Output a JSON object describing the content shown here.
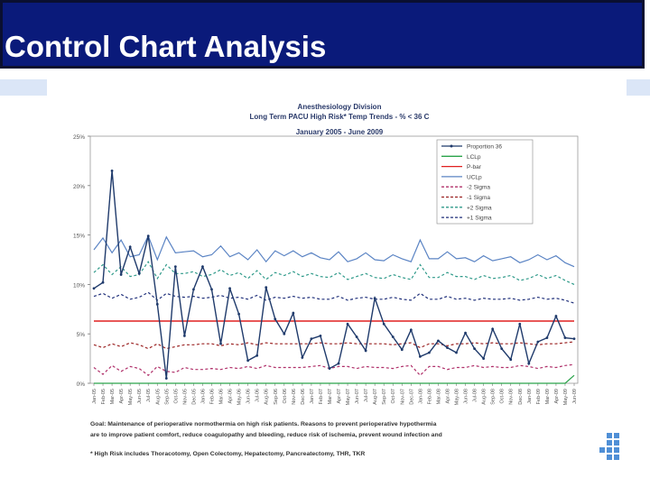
{
  "slide": {
    "title": "Control Chart Analysis"
  },
  "chart_data": {
    "type": "line",
    "title": "Anesthesiology Division",
    "subtitle_line1": "Long Term PACU High Risk* Temp Trends - % < 36 C",
    "subtitle_line2": "January 2005 - June 2009",
    "ylim": [
      0,
      25
    ],
    "yticks": [
      "0%",
      "5%",
      "10%",
      "15%",
      "20%",
      "25%"
    ],
    "categories": [
      "Jan-05",
      "Feb-05",
      "Mar-05",
      "Apr-05",
      "May-05",
      "Jun-05",
      "Jul-05",
      "Aug-05",
      "Sep-05",
      "Oct-05",
      "Nov-05",
      "Dec-05",
      "Jan-06",
      "Feb-06",
      "Mar-06",
      "Apr-06",
      "May-06",
      "Jun-06",
      "Jul-06",
      "Aug-06",
      "Sep-06",
      "Oct-06",
      "Nov-06",
      "Dec-06",
      "Jan-07",
      "Feb-07",
      "Mar-07",
      "Apr-07",
      "May-07",
      "Jun-07",
      "Jul-07",
      "Aug-07",
      "Sep-07",
      "Oct-07",
      "Nov-07",
      "Dec-07",
      "Jan-08",
      "Feb-08",
      "Mar-08",
      "Apr-08",
      "May-08",
      "Jun-08",
      "Jul-08",
      "Aug-08",
      "Sep-08",
      "Oct-08",
      "Nov-08",
      "Dec-08",
      "Jan-09",
      "Feb-09",
      "Mar-09",
      "Apr-09",
      "May-09",
      "Jun-09"
    ],
    "series": [
      {
        "name": "Proportion 36",
        "color": "#1f3a6b",
        "style": "solid-marker",
        "values": [
          9.6,
          10.2,
          21.5,
          11.0,
          13.8,
          11.1,
          14.9,
          8.0,
          0.5,
          11.8,
          4.8,
          9.5,
          11.8,
          9.5,
          4.0,
          9.6,
          7.0,
          2.3,
          2.8,
          9.7,
          6.5,
          5.0,
          7.1,
          2.6,
          4.5,
          4.8,
          1.5,
          2.0,
          6.0,
          4.7,
          3.3,
          8.6,
          6.0,
          4.7,
          3.4,
          5.4,
          2.7,
          3.1,
          4.3,
          3.6,
          3.1,
          5.1,
          3.5,
          2.5,
          5.5,
          3.5,
          2.4,
          6.0,
          2.0,
          4.2,
          4.6,
          6.8,
          4.6,
          4.5
        ]
      },
      {
        "name": "LCLp",
        "color": "#2aa34a",
        "style": "solid",
        "values": [
          0,
          0,
          0,
          0,
          0,
          0,
          0,
          0,
          0,
          0,
          0,
          0,
          0,
          0,
          0,
          0,
          0,
          0,
          0,
          0,
          0,
          0,
          0,
          0,
          0,
          0,
          0,
          0,
          0,
          0,
          0,
          0,
          0,
          0,
          0,
          0,
          0,
          0,
          0,
          0,
          0,
          0,
          0,
          0,
          0,
          0,
          0,
          0,
          0,
          0,
          0,
          0,
          0,
          0.8
        ]
      },
      {
        "name": "P-bar",
        "color": "#e02020",
        "style": "solid",
        "values": [
          6.3,
          6.3,
          6.3,
          6.3,
          6.3,
          6.3,
          6.3,
          6.3,
          6.3,
          6.3,
          6.3,
          6.3,
          6.3,
          6.3,
          6.3,
          6.3,
          6.3,
          6.3,
          6.3,
          6.3,
          6.3,
          6.3,
          6.3,
          6.3,
          6.3,
          6.3,
          6.3,
          6.3,
          6.3,
          6.3,
          6.3,
          6.3,
          6.3,
          6.3,
          6.3,
          6.3,
          6.3,
          6.3,
          6.3,
          6.3,
          6.3,
          6.3,
          6.3,
          6.3,
          6.3,
          6.3,
          6.3,
          6.3,
          6.3,
          6.3,
          6.3,
          6.3,
          6.3,
          6.3
        ]
      },
      {
        "name": "UCLp",
        "color": "#5b84c4",
        "style": "solid",
        "values": [
          13.5,
          14.7,
          13.2,
          14.5,
          12.8,
          13.0,
          14.9,
          12.5,
          14.8,
          13.2,
          13.3,
          13.4,
          12.8,
          13.0,
          13.9,
          12.8,
          13.2,
          12.5,
          13.5,
          12.3,
          13.4,
          12.9,
          13.4,
          12.8,
          13.2,
          12.7,
          12.5,
          13.3,
          12.3,
          12.6,
          13.2,
          12.5,
          12.4,
          13.0,
          12.6,
          12.3,
          14.5,
          12.6,
          12.6,
          13.3,
          12.6,
          12.7,
          12.3,
          12.9,
          12.4,
          12.6,
          12.8,
          12.2,
          12.5,
          13.0,
          12.5,
          12.9,
          12.2,
          11.8
        ]
      },
      {
        "name": "-2 Sigma",
        "color": "#b0306a",
        "style": "dashed",
        "values": [
          1.6,
          0.9,
          1.8,
          1.2,
          1.7,
          1.5,
          0.8,
          1.7,
          1.2,
          1.1,
          1.6,
          1.4,
          1.4,
          1.5,
          1.4,
          1.6,
          1.5,
          1.7,
          1.5,
          1.8,
          1.6,
          1.6,
          1.6,
          1.6,
          1.7,
          1.8,
          1.5,
          1.7,
          1.7,
          1.5,
          1.7,
          1.6,
          1.6,
          1.5,
          1.7,
          1.8,
          0.8,
          1.7,
          1.7,
          1.4,
          1.6,
          1.6,
          1.8,
          1.6,
          1.7,
          1.6,
          1.6,
          1.8,
          1.7,
          1.5,
          1.7,
          1.6,
          1.8,
          1.9
        ]
      },
      {
        "name": "-1 Sigma",
        "color": "#9b2323",
        "style": "dashed",
        "values": [
          3.9,
          3.6,
          4.0,
          3.7,
          4.1,
          3.9,
          3.5,
          4.0,
          3.5,
          3.7,
          3.9,
          3.9,
          4.0,
          4.0,
          3.8,
          4.0,
          3.9,
          4.1,
          3.9,
          4.1,
          4.0,
          4.0,
          4.0,
          4.0,
          4.0,
          4.1,
          4.0,
          4.0,
          4.1,
          4.0,
          4.0,
          4.0,
          4.0,
          3.9,
          4.0,
          4.1,
          3.6,
          4.0,
          4.0,
          3.8,
          4.0,
          4.0,
          4.1,
          4.0,
          4.1,
          4.0,
          4.0,
          4.1,
          4.0,
          3.9,
          4.0,
          4.0,
          4.1,
          4.2
        ]
      },
      {
        "name": "+2 Sigma",
        "color": "#2f9a8a",
        "style": "dashed",
        "values": [
          11.2,
          12.0,
          11.0,
          11.8,
          10.8,
          11.0,
          12.3,
          10.6,
          12.0,
          11.1,
          11.1,
          11.3,
          10.8,
          11.0,
          11.5,
          10.9,
          11.2,
          10.6,
          11.4,
          10.5,
          11.2,
          10.9,
          11.3,
          10.8,
          11.1,
          10.8,
          10.7,
          11.2,
          10.5,
          10.8,
          11.1,
          10.7,
          10.6,
          11.0,
          10.7,
          10.5,
          12.0,
          10.7,
          10.7,
          11.2,
          10.8,
          10.8,
          10.5,
          10.9,
          10.6,
          10.7,
          10.9,
          10.4,
          10.6,
          11.0,
          10.6,
          10.9,
          10.4,
          10.0
        ]
      },
      {
        "name": "+1 Sigma",
        "color": "#1f2f7a",
        "style": "dashed",
        "values": [
          8.8,
          9.1,
          8.6,
          9.0,
          8.5,
          8.7,
          9.2,
          8.4,
          9.1,
          8.8,
          8.7,
          8.8,
          8.6,
          8.7,
          8.9,
          8.6,
          8.7,
          8.5,
          8.9,
          8.4,
          8.7,
          8.6,
          8.8,
          8.6,
          8.7,
          8.5,
          8.5,
          8.8,
          8.4,
          8.6,
          8.7,
          8.5,
          8.5,
          8.7,
          8.5,
          8.4,
          9.1,
          8.5,
          8.5,
          8.8,
          8.5,
          8.6,
          8.4,
          8.6,
          8.5,
          8.5,
          8.6,
          8.4,
          8.5,
          8.7,
          8.5,
          8.6,
          8.4,
          8.1
        ]
      }
    ],
    "legend": "top-right",
    "footnotes": [
      "Goal: Maintenance of perioperative normothermia on high risk patients.  Reasons to prevent perioperative hypothermia",
      "are to improve patient comfort, reduce coagulopathy and bleeding, reduce risk of ischemia, prevent wound infection and",
      "* High Risk includes Thoracotomy, Open Colectomy, Hepatectomy, Pancreatectomy, THR, TKR"
    ]
  }
}
